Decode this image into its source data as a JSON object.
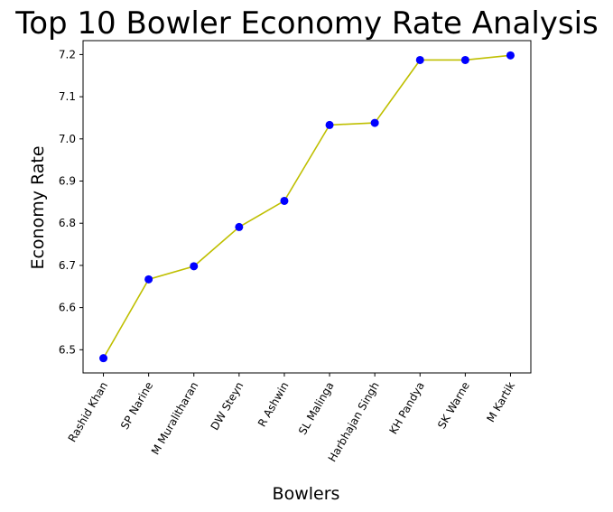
{
  "chart_data": {
    "type": "line",
    "title": "Top 10 Bowler Economy Rate Analysis",
    "xlabel": "Bowlers",
    "ylabel": "Economy Rate",
    "categories": [
      "Rashid Khan",
      "SP Narine",
      "M Muralitharan",
      "DW Steyn",
      "R Ashwin",
      "SL Malinga",
      "Harbhajan Singh",
      "KH Pandya",
      "SK Warne",
      "M Kartik"
    ],
    "values": [
      6.48,
      6.667,
      6.698,
      6.791,
      6.853,
      7.033,
      7.038,
      7.187,
      7.187,
      7.198
    ],
    "yticks": [
      "6.5",
      "6.6",
      "6.7",
      "6.8",
      "6.9",
      "7.0",
      "7.1",
      "7.2"
    ],
    "ylim": [
      6.445,
      7.233
    ],
    "grid": false,
    "line_color": "#bfbf00",
    "marker_color": "#0000ff"
  }
}
